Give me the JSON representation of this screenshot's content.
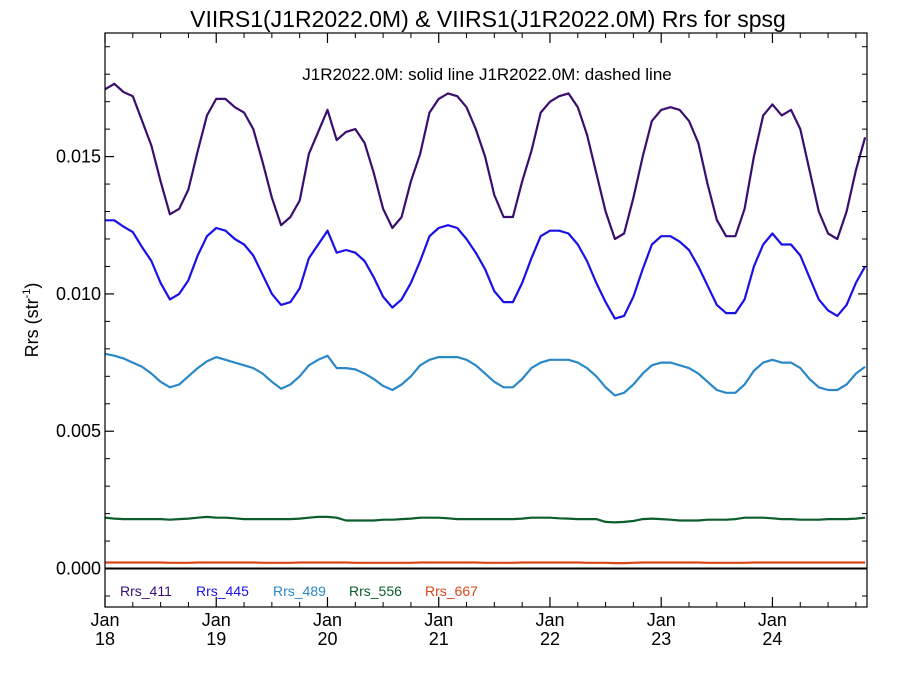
{
  "chart_data": {
    "type": "line",
    "title": "VIIRS1(J1R2022.0M) & VIIRS1(J1R2022.0M)  Rrs for spsg",
    "subtitle": "J1R2022.0M: solid line   J1R2022.0M: dashed line",
    "ylabel": "Rrs (str",
    "ylabel_sup": "-1",
    "ylabel_end": ")",
    "xlim": [
      2018.0,
      2024.85
    ],
    "ylim": [
      -0.0014,
      0.0195
    ],
    "yticks": [
      {
        "value": 0.0,
        "label": "0.000"
      },
      {
        "value": 0.005,
        "label": "0.005"
      },
      {
        "value": 0.01,
        "label": "0.010"
      },
      {
        "value": 0.015,
        "label": "0.015"
      }
    ],
    "xticks": [
      {
        "value": 2018,
        "month": "Jan",
        "year": "18"
      },
      {
        "value": 2019,
        "month": "Jan",
        "year": "19"
      },
      {
        "value": 2020,
        "month": "Jan",
        "year": "20"
      },
      {
        "value": 2021,
        "month": "Jan",
        "year": "21"
      },
      {
        "value": 2022,
        "month": "Jan",
        "year": "22"
      },
      {
        "value": 2023,
        "month": "Jan",
        "year": "23"
      },
      {
        "value": 2024,
        "month": "Jan",
        "year": "24"
      }
    ],
    "zero_line": 0.0,
    "legend_position": "bottom-left",
    "x": [
      2018.0,
      2018.0833,
      2018.1667,
      2018.25,
      2018.3333,
      2018.4167,
      2018.5,
      2018.5833,
      2018.6667,
      2018.75,
      2018.8333,
      2018.9167,
      2019.0,
      2019.0833,
      2019.1667,
      2019.25,
      2019.3333,
      2019.4167,
      2019.5,
      2019.5833,
      2019.6667,
      2019.75,
      2019.8333,
      2019.9167,
      2020.0,
      2020.0833,
      2020.1667,
      2020.25,
      2020.3333,
      2020.4167,
      2020.5,
      2020.5833,
      2020.6667,
      2020.75,
      2020.8333,
      2020.9167,
      2021.0,
      2021.0833,
      2021.1667,
      2021.25,
      2021.3333,
      2021.4167,
      2021.5,
      2021.5833,
      2021.6667,
      2021.75,
      2021.8333,
      2021.9167,
      2022.0,
      2022.0833,
      2022.1667,
      2022.25,
      2022.3333,
      2022.4167,
      2022.5,
      2022.5833,
      2022.6667,
      2022.75,
      2022.8333,
      2022.9167,
      2023.0,
      2023.0833,
      2023.1667,
      2023.25,
      2023.3333,
      2023.4167,
      2023.5,
      2023.5833,
      2023.6667,
      2023.75,
      2023.8333,
      2023.9167,
      2024.0,
      2024.0833,
      2024.1667,
      2024.25,
      2024.3333,
      2024.4167,
      2024.5,
      2024.5833,
      2024.6667,
      2024.75,
      2024.8333
    ],
    "series": [
      {
        "name": "Rrs_411",
        "color": "#3a0e70",
        "values": [
          0.01745,
          0.01765,
          0.01735,
          0.0172,
          0.0163,
          0.0154,
          0.0141,
          0.0129,
          0.0131,
          0.0138,
          0.0152,
          0.0165,
          0.0171,
          0.0171,
          0.0168,
          0.0166,
          0.016,
          0.0148,
          0.0135,
          0.0125,
          0.0128,
          0.0134,
          0.0151,
          0.0159,
          0.0167,
          0.0156,
          0.0159,
          0.016,
          0.0155,
          0.0144,
          0.0131,
          0.0124,
          0.0128,
          0.0141,
          0.0151,
          0.0166,
          0.0171,
          0.0173,
          0.0172,
          0.0168,
          0.016,
          0.015,
          0.0136,
          0.0128,
          0.0128,
          0.0141,
          0.0152,
          0.0166,
          0.017,
          0.0172,
          0.0173,
          0.0168,
          0.0158,
          0.0144,
          0.013,
          0.012,
          0.0122,
          0.0135,
          0.015,
          0.0163,
          0.0167,
          0.0168,
          0.0167,
          0.0163,
          0.0155,
          0.014,
          0.0127,
          0.0121,
          0.0121,
          0.0131,
          0.015,
          0.0165,
          0.0169,
          0.0165,
          0.0167,
          0.016,
          0.0145,
          0.013,
          0.0122,
          0.012,
          0.013,
          0.0145,
          0.0157
        ]
      },
      {
        "name": "Rrs_445",
        "color": "#1a10e8",
        "values": [
          0.01268,
          0.01268,
          0.01245,
          0.01225,
          0.0117,
          0.0112,
          0.0104,
          0.0098,
          0.01,
          0.0105,
          0.0114,
          0.0121,
          0.0124,
          0.0123,
          0.012,
          0.0118,
          0.0114,
          0.0107,
          0.01,
          0.0096,
          0.0097,
          0.0102,
          0.0113,
          0.0118,
          0.0123,
          0.0115,
          0.0116,
          0.0115,
          0.0112,
          0.0106,
          0.0099,
          0.0095,
          0.0098,
          0.0104,
          0.0112,
          0.0121,
          0.0124,
          0.0125,
          0.0124,
          0.012,
          0.0115,
          0.0109,
          0.0101,
          0.0097,
          0.0097,
          0.0104,
          0.0113,
          0.0121,
          0.0123,
          0.0123,
          0.0122,
          0.0118,
          0.0112,
          0.0104,
          0.0097,
          0.0091,
          0.0092,
          0.0099,
          0.0109,
          0.0118,
          0.0121,
          0.0121,
          0.0119,
          0.0116,
          0.011,
          0.0103,
          0.0096,
          0.0093,
          0.0093,
          0.0098,
          0.011,
          0.0118,
          0.0122,
          0.0118,
          0.0118,
          0.0114,
          0.0106,
          0.0098,
          0.0094,
          0.0092,
          0.0096,
          0.0104,
          0.011
        ]
      },
      {
        "name": "Rrs_489",
        "color": "#2b88c8",
        "values": [
          0.00782,
          0.00775,
          0.00765,
          0.0075,
          0.00735,
          0.0071,
          0.0068,
          0.0066,
          0.0067,
          0.007,
          0.0073,
          0.00755,
          0.0077,
          0.0076,
          0.0075,
          0.0074,
          0.0073,
          0.0071,
          0.0068,
          0.00655,
          0.0067,
          0.007,
          0.0074,
          0.0076,
          0.00775,
          0.0073,
          0.0073,
          0.00725,
          0.0071,
          0.0069,
          0.00665,
          0.0065,
          0.0067,
          0.007,
          0.0074,
          0.0076,
          0.0077,
          0.0077,
          0.0077,
          0.0076,
          0.0074,
          0.0071,
          0.0068,
          0.0066,
          0.0066,
          0.0069,
          0.0073,
          0.0075,
          0.0076,
          0.0076,
          0.0076,
          0.0075,
          0.0073,
          0.007,
          0.0066,
          0.0063,
          0.0064,
          0.0067,
          0.0071,
          0.0074,
          0.0075,
          0.0075,
          0.0074,
          0.0073,
          0.0071,
          0.0068,
          0.0065,
          0.0064,
          0.0064,
          0.0067,
          0.0072,
          0.0075,
          0.0076,
          0.0075,
          0.0075,
          0.0073,
          0.0069,
          0.0066,
          0.0065,
          0.0065,
          0.0067,
          0.0071,
          0.00735
        ]
      },
      {
        "name": "Rrs_556",
        "color": "#0b5e2c",
        "values": [
          0.00185,
          0.00182,
          0.0018,
          0.0018,
          0.0018,
          0.0018,
          0.0018,
          0.00178,
          0.0018,
          0.00182,
          0.00185,
          0.00188,
          0.00185,
          0.00185,
          0.00183,
          0.0018,
          0.0018,
          0.0018,
          0.0018,
          0.0018,
          0.0018,
          0.00182,
          0.00185,
          0.00188,
          0.00188,
          0.00185,
          0.00175,
          0.00175,
          0.00175,
          0.00175,
          0.00178,
          0.00178,
          0.0018,
          0.00182,
          0.00185,
          0.00185,
          0.00185,
          0.00183,
          0.0018,
          0.0018,
          0.0018,
          0.0018,
          0.0018,
          0.0018,
          0.0018,
          0.00182,
          0.00185,
          0.00185,
          0.00185,
          0.00183,
          0.00182,
          0.0018,
          0.0018,
          0.0018,
          0.0017,
          0.00168,
          0.0017,
          0.00173,
          0.0018,
          0.00182,
          0.0018,
          0.00178,
          0.00175,
          0.00175,
          0.00175,
          0.00178,
          0.00178,
          0.00178,
          0.0018,
          0.00185,
          0.00185,
          0.00185,
          0.00183,
          0.0018,
          0.0018,
          0.00178,
          0.00178,
          0.00178,
          0.0018,
          0.0018,
          0.0018,
          0.00182,
          0.00185
        ]
      },
      {
        "name": "Rrs_667",
        "color": "#d9461b",
        "values": [
          0.00022,
          0.00022,
          0.00022,
          0.00022,
          0.00022,
          0.00022,
          0.00022,
          0.00021,
          0.00021,
          0.00021,
          0.00022,
          0.00022,
          0.00022,
          0.00022,
          0.00022,
          0.00022,
          0.00022,
          0.00021,
          0.00021,
          0.00021,
          0.00021,
          0.00022,
          0.00022,
          0.00022,
          0.00022,
          0.00022,
          0.00022,
          0.00021,
          0.00021,
          0.00021,
          0.00021,
          0.00021,
          0.00021,
          0.00021,
          0.00022,
          0.00022,
          0.00022,
          0.00022,
          0.00022,
          0.00022,
          0.00022,
          0.00021,
          0.00021,
          0.00021,
          0.00021,
          0.00022,
          0.00022,
          0.00022,
          0.00022,
          0.00022,
          0.00022,
          0.00022,
          0.00021,
          0.00021,
          0.00021,
          0.0002,
          0.0002,
          0.00021,
          0.00022,
          0.00022,
          0.00022,
          0.00022,
          0.00022,
          0.00022,
          0.00022,
          0.00021,
          0.00021,
          0.00021,
          0.00021,
          0.00021,
          0.00022,
          0.00022,
          0.00022,
          0.00022,
          0.00022,
          0.00022,
          0.00022,
          0.00022,
          0.00022,
          0.00022,
          0.00022,
          0.00022,
          0.00022
        ]
      }
    ]
  }
}
